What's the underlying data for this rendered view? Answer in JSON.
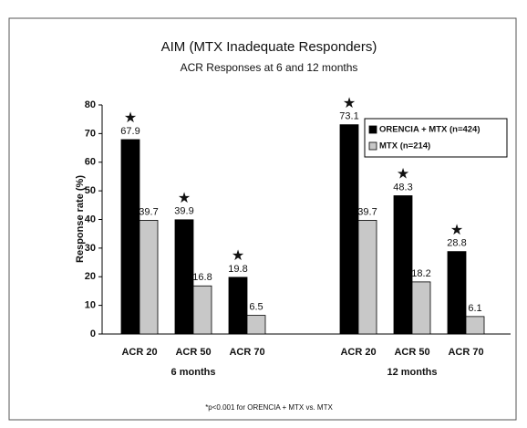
{
  "chart_data": {
    "type": "bar",
    "title": "AIM (MTX Inadequate Responders)",
    "subtitle": "ACR Responses at 6 and 12 months",
    "y_label": "Response rate (%)",
    "categories": [
      "ACR 20",
      "ACR 50",
      "ACR 70",
      "ACR 20",
      "ACR 50",
      "ACR 70"
    ],
    "groups": [
      "6 months",
      "12 months"
    ],
    "series": [
      {
        "name": "ORENCIA + MTX (n=424)",
        "color": "#000000",
        "values": [
          67.9,
          39.9,
          19.8,
          73.1,
          48.3,
          28.8
        ]
      },
      {
        "name": "MTX (n=214)",
        "color": "#c8c8c8",
        "values": [
          39.7,
          16.8,
          6.5,
          39.7,
          18.2,
          6.1
        ]
      }
    ],
    "marker_symbol": "★",
    "footnote": "*p<0.001 for ORENCIA + MTX vs. MTX",
    "ylim": [
      0,
      80
    ],
    "yticks": [
      0,
      10,
      20,
      30,
      40,
      50,
      60,
      70,
      80
    ],
    "legend": "upper right"
  }
}
